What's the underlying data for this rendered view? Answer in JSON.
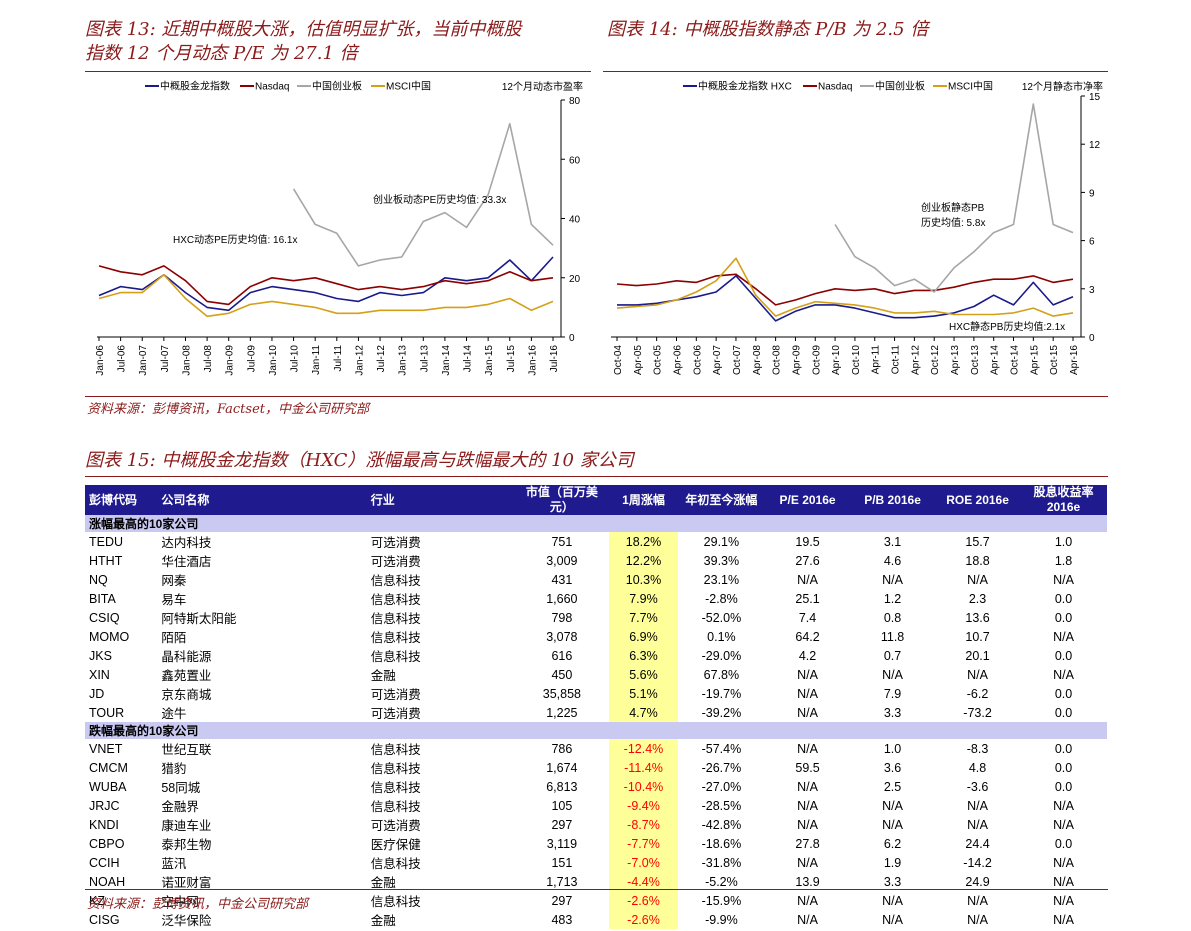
{
  "fig13": {
    "title_line1": "图表 13: 近期中概股大涨，估值明显扩张，当前中概股",
    "title_line2": "指数 12 个月动态 P/E 为 27.1 倍",
    "legend": [
      "中概股金龙指数",
      "Nasdaq",
      "中国创业板",
      "MSCI中国"
    ],
    "yaxis_title": "12个月动态市盈率",
    "annotation_chinext": "创业板动态PE历史均值: 33.3x",
    "annotation_hxc": "HXC动态PE历史均值: 16.1x"
  },
  "fig14": {
    "title": "图表 14: 中概股指数静态 P/B 为 2.5 倍",
    "legend": [
      "中概股金龙指数 HXC",
      "Nasdaq",
      "中国创业板",
      "MSCI中国"
    ],
    "yaxis_title": "12个月静态市净率",
    "annotation_chinext_1": "创业板静态PB",
    "annotation_chinext_2": "历史均值: 5.8x",
    "annotation_hxc": "HXC静态PB历史均值:2.1x"
  },
  "source1": "资料来源：彭博资讯，Factset，中金公司研究部",
  "fig15": {
    "title": "图表 15: 中概股金龙指数（HXC）涨幅最高与跌幅最大的 10 家公司"
  },
  "source2": "资料来源：彭博资讯，中金公司研究部",
  "table": {
    "headers": [
      "彭博代码",
      "公司名称",
      "行业",
      "市值（百万美元）",
      "1周涨幅",
      "年初至今涨幅",
      "P/E 2016e",
      "P/B 2016e",
      "ROE 2016e",
      "股息收益率 2016e"
    ],
    "section_top": "涨幅最高的10家公司",
    "section_bottom": "跌幅最高的10家公司",
    "top": [
      [
        "TEDU",
        "达内科技",
        "可选消费",
        "751",
        "18.2%",
        "29.1%",
        "19.5",
        "3.1",
        "15.7",
        "1.0"
      ],
      [
        "HTHT",
        "华住酒店",
        "可选消费",
        "3,009",
        "12.2%",
        "39.3%",
        "27.6",
        "4.6",
        "18.8",
        "1.8"
      ],
      [
        "NQ",
        "网秦",
        "信息科技",
        "431",
        "10.3%",
        "23.1%",
        "N/A",
        "N/A",
        "N/A",
        "N/A"
      ],
      [
        "BITA",
        "易车",
        "信息科技",
        "1,660",
        "7.9%",
        "-2.8%",
        "25.1",
        "1.2",
        "2.3",
        "0.0"
      ],
      [
        "CSIQ",
        "阿特斯太阳能",
        "信息科技",
        "798",
        "7.7%",
        "-52.0%",
        "7.4",
        "0.8",
        "13.6",
        "0.0"
      ],
      [
        "MOMO",
        "陌陌",
        "信息科技",
        "3,078",
        "6.9%",
        "0.1%",
        "64.2",
        "11.8",
        "10.7",
        "N/A"
      ],
      [
        "JKS",
        "晶科能源",
        "信息科技",
        "616",
        "6.3%",
        "-29.0%",
        "4.2",
        "0.7",
        "20.1",
        "0.0"
      ],
      [
        "XIN",
        "鑫苑置业",
        "金融",
        "450",
        "5.6%",
        "67.8%",
        "N/A",
        "N/A",
        "N/A",
        "N/A"
      ],
      [
        "JD",
        "京东商城",
        "可选消费",
        "35,858",
        "5.1%",
        "-19.7%",
        "N/A",
        "7.9",
        "-6.2",
        "0.0"
      ],
      [
        "TOUR",
        "途牛",
        "可选消费",
        "1,225",
        "4.7%",
        "-39.2%",
        "N/A",
        "3.3",
        "-73.2",
        "0.0"
      ]
    ],
    "bottom": [
      [
        "VNET",
        "世纪互联",
        "信息科技",
        "786",
        "-12.4%",
        "-57.4%",
        "N/A",
        "1.0",
        "-8.3",
        "0.0"
      ],
      [
        "CMCM",
        "猎豹",
        "信息科技",
        "1,674",
        "-11.4%",
        "-26.7%",
        "59.5",
        "3.6",
        "4.8",
        "0.0"
      ],
      [
        "WUBA",
        "58同城",
        "信息科技",
        "6,813",
        "-10.4%",
        "-27.0%",
        "N/A",
        "2.5",
        "-3.6",
        "0.0"
      ],
      [
        "JRJC",
        "金融界",
        "信息科技",
        "105",
        "-9.4%",
        "-28.5%",
        "N/A",
        "N/A",
        "N/A",
        "N/A"
      ],
      [
        "KNDI",
        "康迪车业",
        "可选消费",
        "297",
        "-8.7%",
        "-42.8%",
        "N/A",
        "N/A",
        "N/A",
        "N/A"
      ],
      [
        "CBPO",
        "泰邦生物",
        "医疗保健",
        "3,119",
        "-7.7%",
        "-18.6%",
        "27.8",
        "6.2",
        "24.4",
        "0.0"
      ],
      [
        "CCIH",
        "蓝汛",
        "信息科技",
        "151",
        "-7.0%",
        "-31.8%",
        "N/A",
        "1.9",
        "-14.2",
        "N/A"
      ],
      [
        "NOAH",
        "诺亚财富",
        "金融",
        "1,713",
        "-4.4%",
        "-5.2%",
        "13.9",
        "3.3",
        "24.9",
        "N/A"
      ],
      [
        "KZ",
        "空中网",
        "信息科技",
        "297",
        "-2.6%",
        "-15.9%",
        "N/A",
        "N/A",
        "N/A",
        "N/A"
      ],
      [
        "CISG",
        "泛华保险",
        "金融",
        "483",
        "-2.6%",
        "-9.9%",
        "N/A",
        "N/A",
        "N/A",
        "N/A"
      ]
    ]
  },
  "colors": {
    "hxc": "#1A1A8C",
    "nasdaq": "#8B0000",
    "chinext": "#A6A6A6",
    "msci": "#D4A017",
    "accent": "#8B1A1A",
    "header_bg": "#1F1A8E",
    "section_bg": "#C9C9F2",
    "highlight": "#FFFF99"
  },
  "chart_data": [
    {
      "type": "line",
      "title": "近期中概股大涨，估值明显扩张，当前中概股指数 12 个月动态 P/E 为 27.1 倍",
      "ylabel": "12个月动态市盈率",
      "ylim": [
        0,
        80
      ],
      "yticks": [
        0,
        20,
        40,
        60,
        80
      ],
      "xticks": [
        "Jan-06",
        "Jul-06",
        "Jan-07",
        "Jul-07",
        "Jan-08",
        "Jul-08",
        "Jan-09",
        "Jul-09",
        "Jan-10",
        "Jul-10",
        "Jan-11",
        "Jul-11",
        "Jan-12",
        "Jul-12",
        "Jan-13",
        "Jul-13",
        "Jan-14",
        "Jul-14",
        "Jan-15",
        "Jul-15",
        "Jan-16",
        "Jul-16"
      ],
      "x": [
        "Jan-06",
        "Jul-06",
        "Jan-07",
        "Jul-07",
        "Jan-08",
        "Jul-08",
        "Jan-09",
        "Jul-09",
        "Jan-10",
        "Jul-10",
        "Jan-11",
        "Jul-11",
        "Jan-12",
        "Jul-12",
        "Jan-13",
        "Jul-13",
        "Jan-14",
        "Jul-14",
        "Jan-15",
        "Jul-15",
        "Jan-16",
        "Jul-16"
      ],
      "series": [
        {
          "name": "中概股金龙指数",
          "values": [
            14,
            17,
            16,
            21,
            15,
            10,
            9,
            15,
            17,
            16,
            15,
            13,
            12,
            15,
            14,
            15,
            20,
            19,
            20,
            26,
            19,
            27
          ]
        },
        {
          "name": "Nasdaq",
          "values": [
            24,
            22,
            21,
            24,
            19,
            12,
            11,
            17,
            20,
            19,
            20,
            18,
            16,
            17,
            16,
            17,
            19,
            18,
            19,
            22,
            19,
            20
          ]
        },
        {
          "name": "中国创业板",
          "values": [
            null,
            null,
            null,
            null,
            null,
            null,
            null,
            null,
            null,
            50,
            38,
            35,
            24,
            26,
            27,
            39,
            42,
            37,
            48,
            72,
            38,
            31
          ]
        },
        {
          "name": "MSCI中国",
          "values": [
            13,
            15,
            15,
            21,
            13,
            7,
            8,
            11,
            12,
            11,
            10,
            8,
            8,
            9,
            9,
            9,
            10,
            10,
            11,
            13,
            9,
            12
          ]
        }
      ],
      "annotations": [
        "创业板动态PE历史均值: 33.3x",
        "HXC动态PE历史均值: 16.1x"
      ],
      "legend": "top"
    },
    {
      "type": "line",
      "title": "中概股指数静态 P/B 为 2.5 倍",
      "ylabel": "12个月静态市净率",
      "ylim": [
        0,
        15
      ],
      "yticks": [
        0,
        3,
        6,
        9,
        12,
        15
      ],
      "xticks": [
        "Oct-04",
        "Apr-05",
        "Oct-05",
        "Apr-06",
        "Oct-06",
        "Apr-07",
        "Oct-07",
        "Apr-08",
        "Oct-08",
        "Apr-09",
        "Oct-09",
        "Apr-10",
        "Oct-10",
        "Apr-11",
        "Oct-11",
        "Apr-12",
        "Oct-12",
        "Apr-13",
        "Oct-13",
        "Apr-14",
        "Oct-14",
        "Apr-15",
        "Oct-15",
        "Apr-16"
      ],
      "x": [
        "Oct-04",
        "Apr-05",
        "Oct-05",
        "Apr-06",
        "Oct-06",
        "Apr-07",
        "Oct-07",
        "Apr-08",
        "Oct-08",
        "Apr-09",
        "Oct-09",
        "Apr-10",
        "Oct-10",
        "Apr-11",
        "Oct-11",
        "Apr-12",
        "Oct-12",
        "Apr-13",
        "Oct-13",
        "Apr-14",
        "Oct-14",
        "Apr-15",
        "Oct-15",
        "Apr-16"
      ],
      "series": [
        {
          "name": "中概股金龙指数 HXC",
          "values": [
            2.0,
            2.0,
            2.1,
            2.3,
            2.5,
            2.8,
            3.8,
            2.4,
            1.0,
            1.6,
            2.0,
            2.0,
            1.8,
            1.5,
            1.2,
            1.2,
            1.3,
            1.5,
            1.9,
            2.6,
            2.0,
            3.4,
            2.0,
            2.5
          ]
        },
        {
          "name": "Nasdaq",
          "values": [
            3.3,
            3.2,
            3.3,
            3.5,
            3.4,
            3.8,
            3.9,
            3.0,
            2.0,
            2.3,
            2.7,
            3.0,
            2.9,
            3.0,
            2.7,
            2.9,
            2.9,
            3.1,
            3.4,
            3.6,
            3.6,
            3.8,
            3.4,
            3.6
          ]
        },
        {
          "name": "中国创业板",
          "values": [
            null,
            null,
            null,
            null,
            null,
            null,
            null,
            null,
            null,
            null,
            null,
            7.0,
            5.0,
            4.3,
            3.2,
            3.6,
            2.8,
            4.3,
            5.3,
            6.5,
            7.0,
            14.5,
            7.0,
            6.5
          ]
        },
        {
          "name": "MSCI中国",
          "values": [
            1.8,
            1.9,
            2.0,
            2.3,
            2.8,
            3.5,
            4.9,
            2.6,
            1.3,
            1.8,
            2.2,
            2.1,
            2.0,
            1.8,
            1.5,
            1.5,
            1.6,
            1.4,
            1.4,
            1.4,
            1.5,
            1.8,
            1.3,
            1.5
          ]
        }
      ],
      "annotations": [
        "创业板静态PB 历史均值: 5.8x",
        "HXC静态PB历史均值:2.1x"
      ],
      "legend": "top"
    }
  ]
}
